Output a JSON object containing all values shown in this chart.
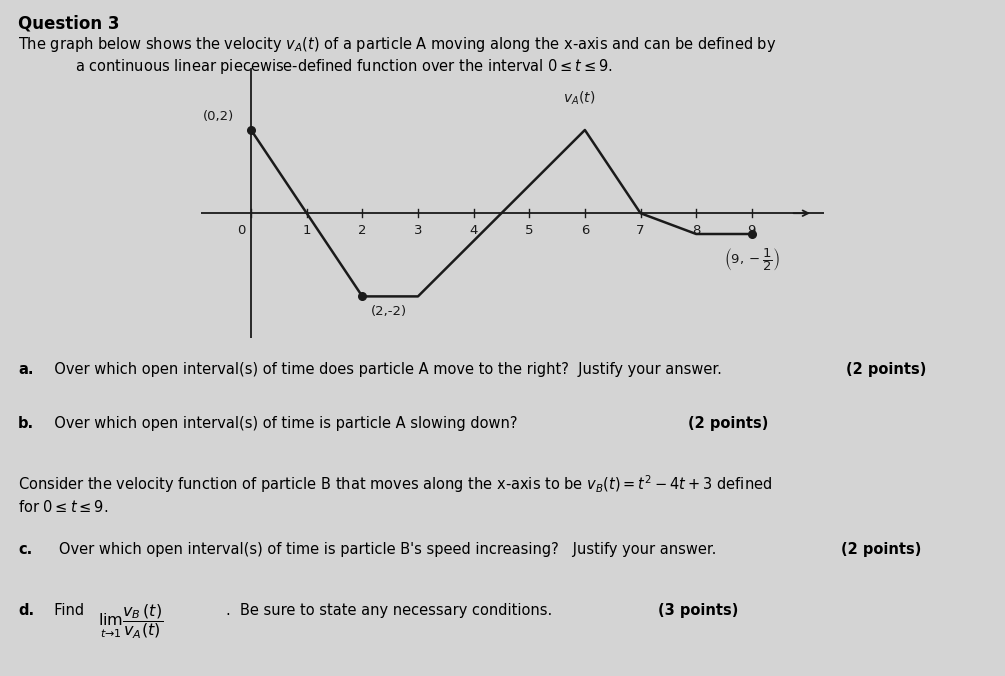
{
  "title": "Question 3",
  "desc1": "The graph below shows the velocity $v_A(t)$ of a particle A moving along the x-axis and can be defined by",
  "desc2": "a continuous linear piecewise-defined function over the interval $0\\leq t\\leq 9$.",
  "points": [
    [
      0,
      2
    ],
    [
      2,
      -2
    ],
    [
      3,
      -2
    ],
    [
      6,
      2
    ],
    [
      7,
      0
    ],
    [
      8,
      -0.5
    ],
    [
      9,
      -0.5
    ]
  ],
  "dot_points": [
    [
      0,
      2
    ],
    [
      2,
      -2
    ],
    [
      9,
      -0.5
    ]
  ],
  "xticks": [
    0,
    1,
    2,
    3,
    4,
    5,
    6,
    7,
    8,
    9
  ],
  "xlim": [
    -0.9,
    10.3
  ],
  "ylim": [
    -3.0,
    3.5
  ],
  "line_color": "#1a1a1a",
  "dot_color": "#1a1a1a",
  "bg_color": "#d4d4d4",
  "qa_bold": "a.",
  "qa_text": "  Over which open interval(s) of time does particle A move to the right?  Justify your answer.  ",
  "qa_points": "(2 points)",
  "qb_bold": "b.",
  "qb_text": "  Over which open interval(s) of time is particle A slowing down?  ",
  "qb_points": "(2 points)",
  "qc_intro1": "Consider the velocity function of particle B that moves along the x-axis to be $v_B(t)=t^2-4t+3$ defined",
  "qc_intro2": "for $0\\leq t\\leq 9$.",
  "qc_bold": "c.",
  "qc_text": "   Over which open interval(s) of time is particle B's speed increasing?   Justify your answer.  ",
  "qc_points": "(2 points)",
  "qd_bold": "d.",
  "qd_text": "  Find ",
  "qd_math": "$\\lim_{t\\to 1}\\dfrac{v_B(t)}{v_A(t)}$",
  "qd_text2": ".  Be sure to state any necessary conditions.  ",
  "qd_points": "(3 points)"
}
